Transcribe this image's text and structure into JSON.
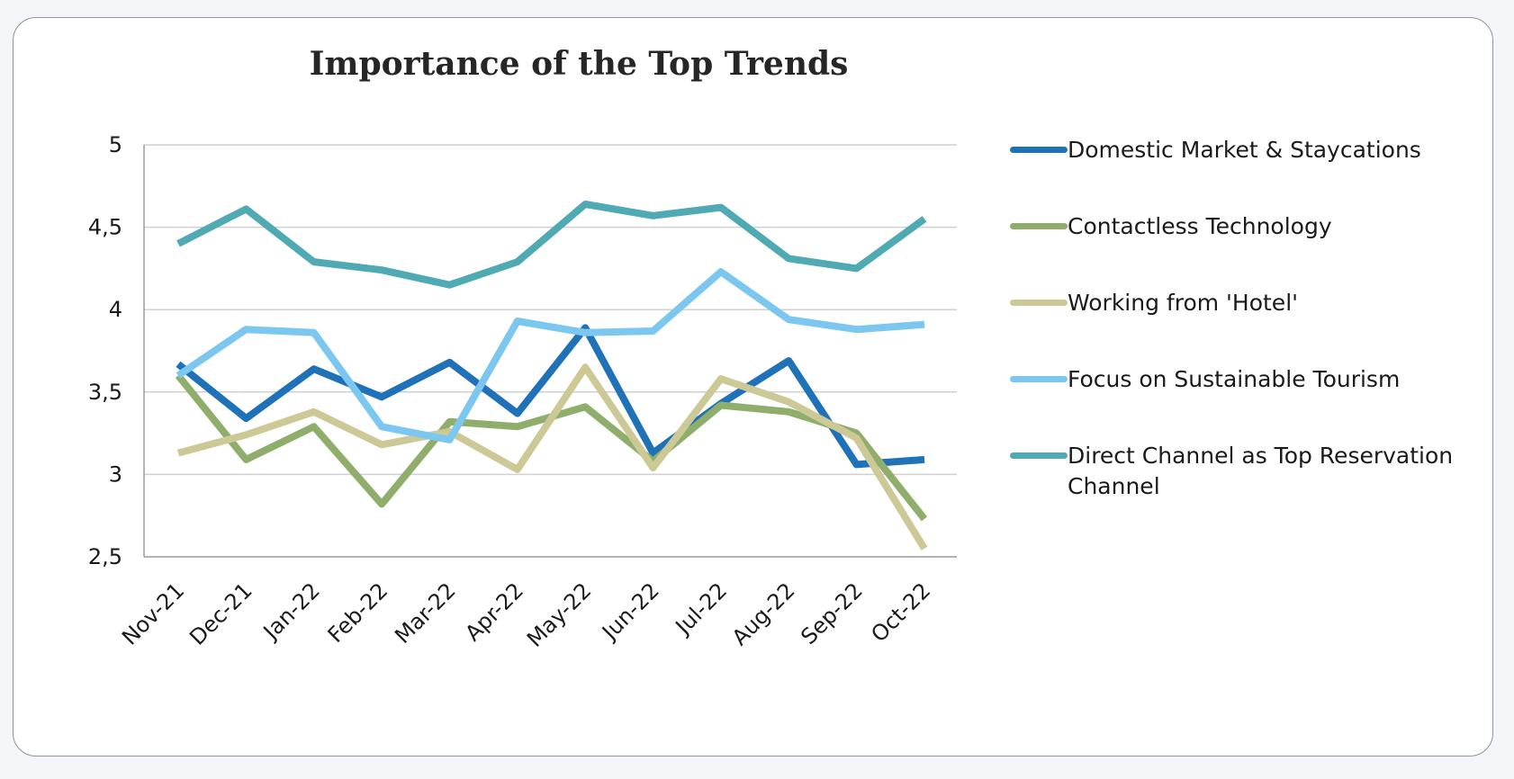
{
  "chart_data": {
    "type": "line",
    "title": "Importance of the Top Trends",
    "categories": [
      "Nov-21",
      "Dec-21",
      "Jan-22",
      "Feb-22",
      "Mar-22",
      "Apr-22",
      "May-22",
      "Jun-22",
      "Jul-22",
      "Aug-22",
      "Sep-22",
      "Oct-22"
    ],
    "ylim": [
      2.5,
      5
    ],
    "yticks": [
      2.5,
      3,
      3.5,
      4,
      4.5,
      5
    ],
    "ytick_labels": [
      "2,5",
      "3",
      "3,5",
      "4",
      "4,5",
      "5"
    ],
    "grid": true,
    "legend_position": "right",
    "series": [
      {
        "name": "Domestic Market & Staycations",
        "color": "#1f72b8",
        "values": [
          3.67,
          3.34,
          3.64,
          3.47,
          3.68,
          3.37,
          3.89,
          3.13,
          3.43,
          3.69,
          3.06,
          3.09
        ]
      },
      {
        "name": "Contactless Technology",
        "color": "#8fae6b",
        "values": [
          3.6,
          3.09,
          3.29,
          2.82,
          3.32,
          3.29,
          3.41,
          3.08,
          3.42,
          3.38,
          3.25,
          2.73
        ]
      },
      {
        "name": "Working from 'Hotel'",
        "color": "#cdc997",
        "values": [
          3.13,
          3.24,
          3.38,
          3.18,
          3.26,
          3.03,
          3.65,
          3.04,
          3.58,
          3.44,
          3.22,
          2.55
        ]
      },
      {
        "name": "Focus on Sustainable Tourism",
        "color": "#7cc7f0",
        "values": [
          3.6,
          3.88,
          3.86,
          3.29,
          3.21,
          3.93,
          3.86,
          3.87,
          4.23,
          3.94,
          3.88,
          3.91
        ]
      },
      {
        "name": "Direct Channel as Top Reservation Channel",
        "color": "#50aab4",
        "values": [
          4.4,
          4.61,
          4.29,
          4.24,
          4.15,
          4.29,
          4.64,
          4.57,
          4.62,
          4.31,
          4.25,
          4.55
        ]
      }
    ]
  }
}
